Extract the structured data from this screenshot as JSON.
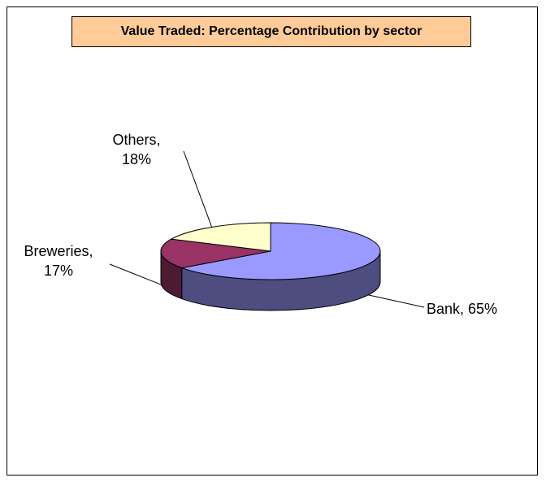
{
  "chart_data": {
    "type": "pie",
    "title": "Value Traded: Percentage Contribution by sector",
    "categories": [
      "Bank",
      "Breweries",
      "Others"
    ],
    "values": [
      65,
      17,
      18
    ],
    "value_labels": [
      "Bank, 65%",
      "Breweries, 17%",
      "Others, 18%"
    ],
    "colors": [
      "#9999ff",
      "#993366",
      "#ffffcc"
    ],
    "side_colors": [
      "#4d4d80",
      "#4d1a33",
      "#80806a"
    ]
  }
}
